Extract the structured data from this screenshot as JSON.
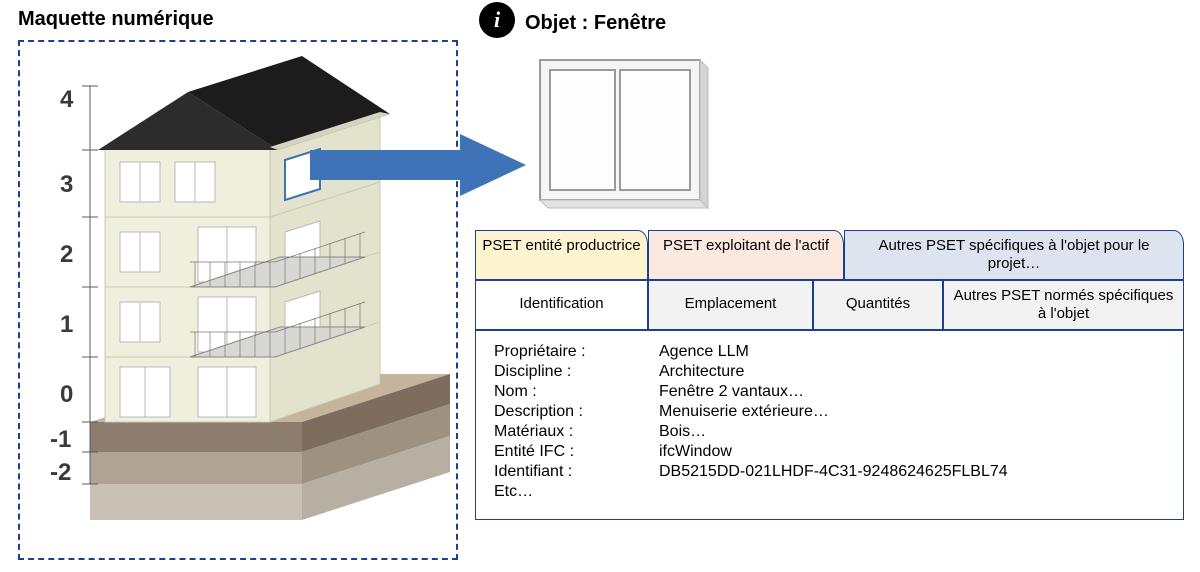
{
  "titles": {
    "left": "Maquette numérique",
    "right": "Objet : Fenêtre"
  },
  "building": {
    "floor_labels": [
      "4",
      "3",
      "2",
      "1",
      "0",
      "-1",
      "-2"
    ],
    "colors": {
      "roof": "#1c1c1c",
      "wall_front": "#f0efdd",
      "wall_side": "#e3e2cc",
      "balcony": "#d7d7d3",
      "window_frame": "#ffffff",
      "ground": "#c6b39c",
      "soil1": "#8d7d6e",
      "soil2": "#b0a393",
      "soil3": "#c8c0b5",
      "dimension": "#5b5b5b"
    }
  },
  "arrow_color": "#3e73b7",
  "table": {
    "top_row": [
      "PSET entité productrice",
      "PSET exploitant de l'actif",
      "Autres PSET spécifiques à l'objet pour le projet…"
    ],
    "mid_row": [
      "Identification",
      "Emplacement",
      "Quantités",
      "Autres PSET normés spécifiques à l'objet"
    ],
    "properties": [
      {
        "label": "Propriétaire :",
        "value": "Agence LLM"
      },
      {
        "label": "Discipline :",
        "value": "Architecture"
      },
      {
        "label": "Nom :",
        "value": "Fenêtre 2 vantaux…"
      },
      {
        "label": "Description :",
        "value": "Menuiserie extérieure…"
      },
      {
        "label": "Matériaux :",
        "value": "Bois…"
      },
      {
        "label": "Entité IFC :",
        "value": "ifcWindow"
      },
      {
        "label": "Identifiant :",
        "value": "DB5215DD-021LHDF-4C31-9248624625FLBL74"
      },
      {
        "label": "Etc…",
        "value": ""
      }
    ],
    "colors": {
      "border": "#1e3f8f",
      "tab1_bg": "#fef5d0",
      "tab2_bg": "#fbe8de",
      "tab3_bg": "#dde3ef",
      "inactive_bg": "#f2f2f2",
      "active_bg": "#ffffff"
    }
  }
}
